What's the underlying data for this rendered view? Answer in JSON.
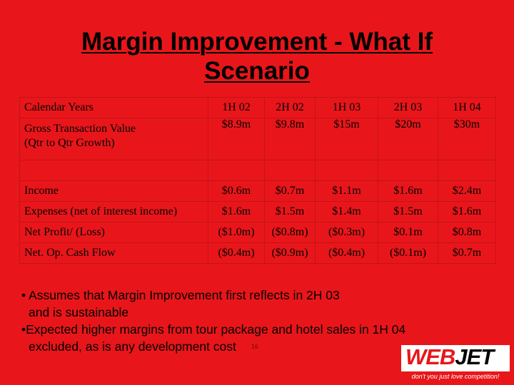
{
  "title": {
    "line1": "Margin Improvement - What If",
    "line2": "Scenario"
  },
  "table": {
    "header": [
      "Calendar Years",
      "1H 02",
      "2H 02",
      "1H 03",
      "2H 03",
      "1H 04"
    ],
    "gtv": {
      "label_line1": "Gross Transaction Value",
      "label_line2": "(Qtr to Qtr Growth)",
      "values": [
        "$8.9m",
        "$9.8m",
        "$15m",
        "$20m",
        "$30m"
      ]
    },
    "rows": [
      {
        "label": "Income",
        "values": [
          "$0.6m",
          "$0.7m",
          "$1.1m",
          "$1.6m",
          "$2.4m"
        ]
      },
      {
        "label": "Expenses (net of interest income)",
        "values": [
          "$1.6m",
          "$1.5m",
          "$1.4m",
          "$1.5m",
          "$1.6m"
        ]
      },
      {
        "label": "Net Profit/ (Loss)",
        "values": [
          "($1.0m)",
          "($0.8m)",
          "($0.3m)",
          "$0.1m",
          "$0.8m"
        ]
      },
      {
        "label": "Net. Op. Cash Flow",
        "values": [
          "($0.4m)",
          "($0.9m)",
          "($0.4m)",
          "($0.1m)",
          "$0.7m"
        ]
      }
    ]
  },
  "bullets": [
    {
      "line1": "• Assumes that Margin Improvement first reflects in 2H 03",
      "line2": "and is sustainable"
    },
    {
      "line1": "•Expected higher margins from tour package and hotel sales in 1H 04",
      "line2": "excluded, as is any development cost"
    }
  ],
  "page_number": "16",
  "logo": {
    "web": "WEB",
    "jet": "JET",
    "tagline": "don't you just love competition!"
  },
  "colors": {
    "background": "#e8161a",
    "cell_border": "#c3121a",
    "logo_red": "#e8161a"
  }
}
